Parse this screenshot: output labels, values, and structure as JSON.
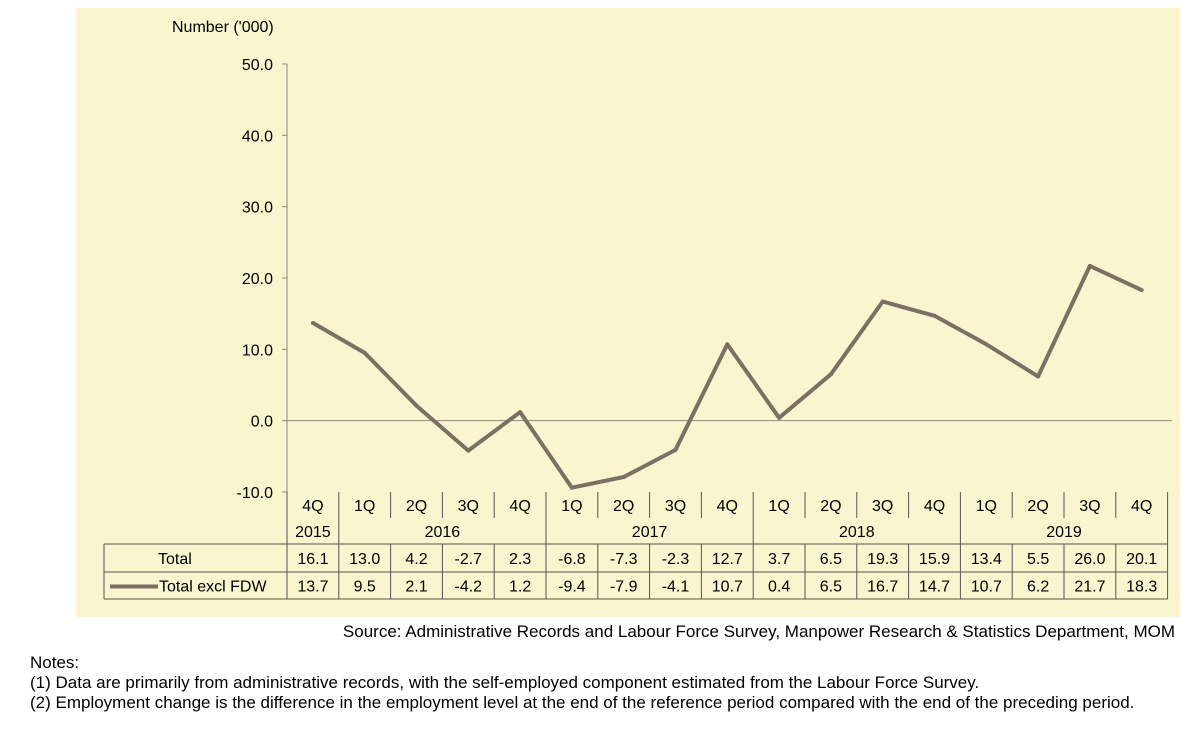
{
  "chart_data": {
    "type": "line",
    "ylabel": "Number ('000)",
    "ylim": [
      -10,
      50
    ],
    "yticks": [
      "50.0",
      "40.0",
      "30.0",
      "20.0",
      "10.0",
      "0.0",
      "-10.0"
    ],
    "quarters": [
      "4Q",
      "1Q",
      "2Q",
      "3Q",
      "4Q",
      "1Q",
      "2Q",
      "3Q",
      "4Q",
      "1Q",
      "2Q",
      "3Q",
      "4Q",
      "1Q",
      "2Q",
      "3Q",
      "4Q"
    ],
    "year_groups": [
      {
        "label": "2015",
        "span": 1
      },
      {
        "label": "2016",
        "span": 4
      },
      {
        "label": "2017",
        "span": 4
      },
      {
        "label": "2018",
        "span": 4
      },
      {
        "label": "2019",
        "span": 4
      }
    ],
    "series": [
      {
        "name": "Total",
        "values": [
          16.1,
          13.0,
          4.2,
          -2.7,
          2.3,
          -6.8,
          -7.3,
          -2.3,
          12.7,
          3.7,
          6.5,
          19.3,
          15.9,
          13.4,
          5.5,
          26.0,
          20.1
        ],
        "labels": [
          "16.1",
          "13.0",
          "4.2",
          "-2.7",
          "2.3",
          "-6.8",
          "-7.3",
          "-2.3",
          "12.7",
          "3.7",
          "6.5",
          "19.3",
          "15.9",
          "13.4",
          "5.5",
          "26.0",
          "20.1"
        ],
        "plotted": false,
        "color": ""
      },
      {
        "name": "Total excl FDW",
        "values": [
          13.7,
          9.5,
          2.1,
          -4.2,
          1.2,
          -9.4,
          -7.9,
          -4.1,
          10.7,
          0.4,
          6.5,
          16.7,
          14.7,
          10.7,
          6.2,
          21.7,
          18.3
        ],
        "labels": [
          "13.7",
          "9.5",
          "2.1",
          "-4.2",
          "1.2",
          "-9.4",
          "-7.9",
          "-4.1",
          "10.7",
          "0.4",
          "6.5",
          "16.7",
          "14.7",
          "10.7",
          "6.2",
          "21.7",
          "18.3"
        ],
        "plotted": true,
        "color": "#7a7164"
      }
    ],
    "background_color": "#f8f5cf",
    "legend": "data-table"
  },
  "source": "Source: Administrative Records and Labour Force Survey, Manpower Research & Statistics Department, MOM",
  "notes": {
    "title": "Notes:",
    "items": [
      "(1)  Data are primarily from administrative records, with the self-employed component estimated from the Labour Force Survey.",
      "(2)  Employment change is the difference in the employment level at the end of the reference period compared with the end of the preceding period."
    ]
  }
}
